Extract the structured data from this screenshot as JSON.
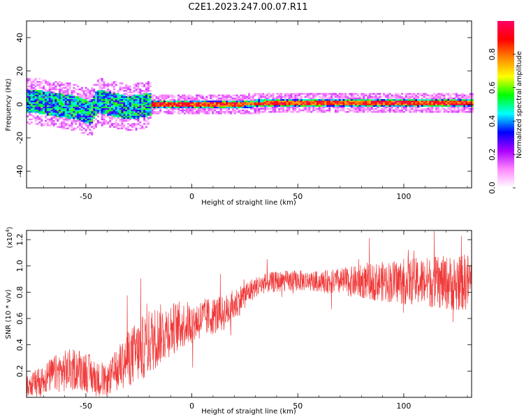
{
  "figure": {
    "title": "C2E1.2023.247.00.07.R11"
  },
  "chart_data": [
    {
      "type": "heatmap",
      "title": "C2E1.2023.247.00.07.R11",
      "xlabel": "Height of straight line (km)",
      "ylabel": "Frequency (Hz)",
      "xlim": [
        -78,
        132
      ],
      "ylim": [
        -50,
        50
      ],
      "x_ticks": [
        -50,
        0,
        50,
        100
      ],
      "y_ticks": [
        -40,
        -20,
        0,
        20,
        40
      ],
      "grid": false,
      "colorbar": {
        "label": "Normalized spectral amplitude",
        "range": [
          0.0,
          1.0
        ],
        "ticks": [
          "0.0",
          "0.2",
          "0.4",
          "0.6",
          "0.8"
        ],
        "colormap": [
          "#ffffff",
          "#ff88ff",
          "#aa00ff",
          "#0000ff",
          "#00ffff",
          "#00ff00",
          "#ffff00",
          "#ff8800",
          "#ff0000",
          "#ff0066"
        ]
      },
      "ridge_center_hz": [
        {
          "x": -75,
          "y": 2
        },
        {
          "x": -65,
          "y": 0
        },
        {
          "x": -55,
          "y": -2
        },
        {
          "x": -48,
          "y": -5
        },
        {
          "x": -45,
          "y": 2
        },
        {
          "x": -38,
          "y": 0
        },
        {
          "x": -30,
          "y": -2
        },
        {
          "x": -20,
          "y": 0
        },
        {
          "x": 0,
          "y": 0
        },
        {
          "x": 20,
          "y": 0
        },
        {
          "x": 40,
          "y": 1
        },
        {
          "x": 60,
          "y": 1
        },
        {
          "x": 75,
          "y": 1
        },
        {
          "x": 100,
          "y": 1
        },
        {
          "x": 132,
          "y": 1
        }
      ]
    },
    {
      "type": "line",
      "xlabel": "Height of straight line (km)",
      "ylabel": "SNR (10 * v/v)",
      "y_multiplier": "(x10",
      "y_multiplier_exp": "4",
      "y_multiplier_close": ")",
      "xlim": [
        -78,
        132
      ],
      "ylim": [
        0.0,
        1.27
      ],
      "x_ticks": [
        -50,
        0,
        50,
        100
      ],
      "y_ticks": [
        0.2,
        0.4,
        0.6,
        0.8,
        1.0,
        1.2
      ],
      "grid": false,
      "series": [
        {
          "color": "#f03838",
          "trend": [
            {
              "x": -78,
              "y": 0.08
            },
            {
              "x": -70,
              "y": 0.14
            },
            {
              "x": -65,
              "y": 0.18
            },
            {
              "x": -60,
              "y": 0.2
            },
            {
              "x": -55,
              "y": 0.22
            },
            {
              "x": -50,
              "y": 0.2
            },
            {
              "x": -45,
              "y": 0.14
            },
            {
              "x": -40,
              "y": 0.12
            },
            {
              "x": -35,
              "y": 0.22
            },
            {
              "x": -30,
              "y": 0.3
            },
            {
              "x": -25,
              "y": 0.35
            },
            {
              "x": -20,
              "y": 0.42
            },
            {
              "x": -15,
              "y": 0.48
            },
            {
              "x": -10,
              "y": 0.52
            },
            {
              "x": -5,
              "y": 0.55
            },
            {
              "x": 0,
              "y": 0.57
            },
            {
              "x": 5,
              "y": 0.6
            },
            {
              "x": 10,
              "y": 0.62
            },
            {
              "x": 15,
              "y": 0.64
            },
            {
              "x": 20,
              "y": 0.7
            },
            {
              "x": 25,
              "y": 0.78
            },
            {
              "x": 30,
              "y": 0.84
            },
            {
              "x": 35,
              "y": 0.87
            },
            {
              "x": 40,
              "y": 0.88
            },
            {
              "x": 50,
              "y": 0.89
            },
            {
              "x": 60,
              "y": 0.88
            },
            {
              "x": 70,
              "y": 0.88
            },
            {
              "x": 80,
              "y": 0.88
            },
            {
              "x": 90,
              "y": 0.88
            },
            {
              "x": 100,
              "y": 0.88
            },
            {
              "x": 110,
              "y": 0.88
            },
            {
              "x": 120,
              "y": 0.87
            },
            {
              "x": 132,
              "y": 0.88
            }
          ],
          "noise": [
            {
              "x": -78,
              "y": 0.05
            },
            {
              "x": -60,
              "y": 0.1
            },
            {
              "x": -50,
              "y": 0.1
            },
            {
              "x": -40,
              "y": 0.07
            },
            {
              "x": -30,
              "y": 0.14
            },
            {
              "x": -20,
              "y": 0.16
            },
            {
              "x": 0,
              "y": 0.1
            },
            {
              "x": 20,
              "y": 0.08
            },
            {
              "x": 30,
              "y": 0.05
            },
            {
              "x": 60,
              "y": 0.05
            },
            {
              "x": 80,
              "y": 0.08
            },
            {
              "x": 100,
              "y": 0.11
            },
            {
              "x": 132,
              "y": 0.14
            }
          ]
        }
      ]
    }
  ]
}
